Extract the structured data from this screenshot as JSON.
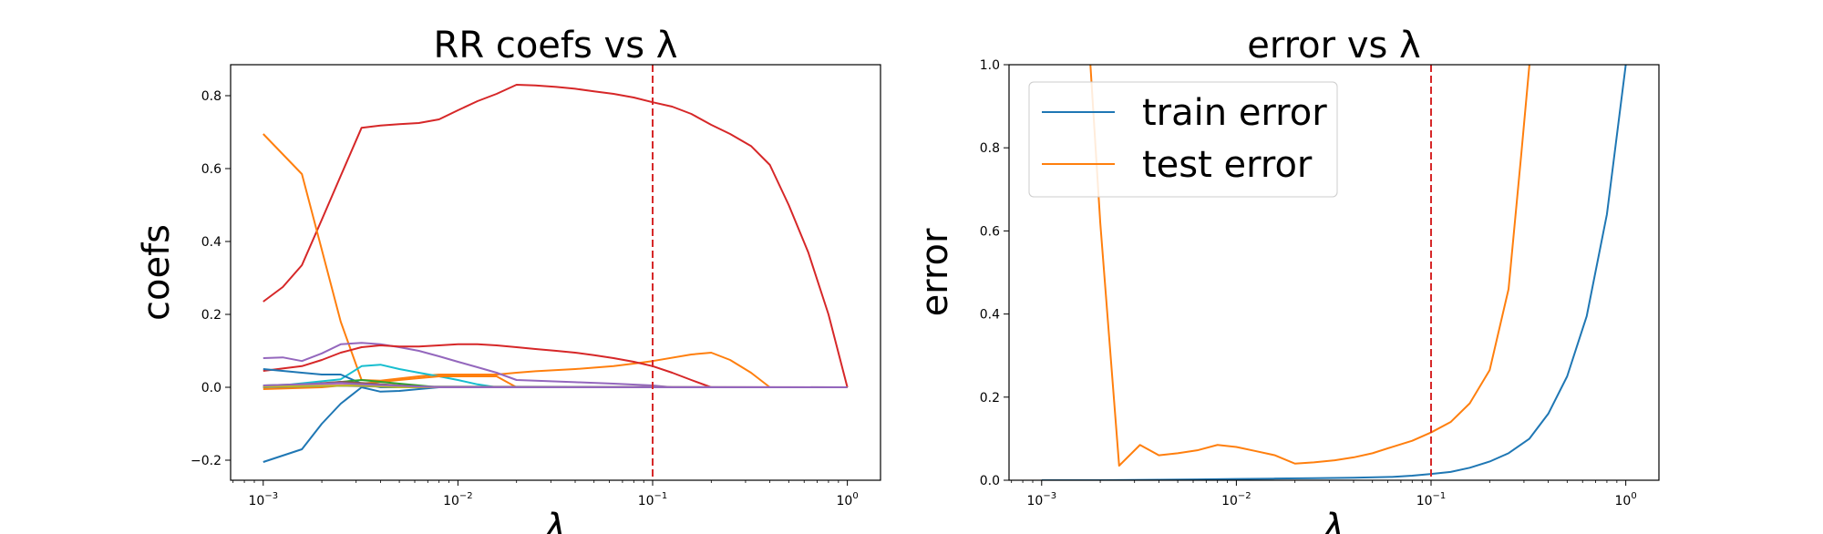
{
  "chart_data": [
    {
      "type": "line",
      "title": "RR coefs vs λ",
      "xlabel": "λ",
      "ylabel": "coefs",
      "xscale": "log",
      "xlim": [
        0.00068,
        1.48
      ],
      "ylim": [
        -0.255,
        0.885
      ],
      "xticks": [
        0.001,
        0.01,
        0.1,
        1
      ],
      "xtick_labels": [
        "10−3",
        "10−2",
        "10−1",
        "100"
      ],
      "yticks": [
        -0.2,
        0.0,
        0.2,
        0.4,
        0.6,
        0.8
      ],
      "ytick_labels": [
        "−0.2",
        "0.0",
        "0.2",
        "0.4",
        "0.6",
        "0.8"
      ],
      "vline": {
        "x": 0.1,
        "color": "#d62728",
        "style": "dashed"
      },
      "grid": false,
      "legend": null,
      "series": [
        {
          "color": "#d62728",
          "x": [
            0.001,
            0.00126,
            0.00158,
            0.002,
            0.0025,
            0.0032,
            0.004,
            0.005,
            0.0063,
            0.008,
            0.01,
            0.0126,
            0.0158,
            0.02,
            0.025,
            0.032,
            0.04,
            0.05,
            0.063,
            0.08,
            0.1,
            0.126,
            0.158,
            0.2,
            0.25,
            0.32,
            0.4,
            0.5,
            0.63,
            0.8,
            1.0
          ],
          "y": [
            0.235,
            0.275,
            0.335,
            0.46,
            0.58,
            0.712,
            0.718,
            0.722,
            0.725,
            0.735,
            0.76,
            0.785,
            0.805,
            0.83,
            0.828,
            0.824,
            0.819,
            0.812,
            0.805,
            0.795,
            0.782,
            0.77,
            0.75,
            0.72,
            0.695,
            0.662,
            0.61,
            0.5,
            0.37,
            0.2,
            0.0
          ]
        },
        {
          "color": "#ff7f0e",
          "x": [
            0.001,
            0.00158,
            0.0025,
            0.0032,
            0.004,
            0.005,
            0.0063,
            0.008,
            0.01,
            0.0158,
            0.02,
            0.025,
            0.04,
            0.063,
            0.08,
            0.1,
            0.158,
            0.2,
            0.25,
            0.32,
            0.4,
            1.0
          ],
          "y": [
            0.695,
            0.585,
            0.18,
            0.02,
            0.018,
            0.024,
            0.03,
            0.035,
            0.035,
            0.035,
            0.04,
            0.044,
            0.05,
            0.058,
            0.065,
            0.072,
            0.09,
            0.095,
            0.075,
            0.04,
            0.0,
            0.0
          ]
        },
        {
          "color": "#1f77b4",
          "x": [
            0.001,
            0.00158,
            0.002,
            0.0025,
            0.0032,
            0.004,
            0.005,
            0.0063,
            0.008,
            0.01,
            1.0
          ],
          "y": [
            -0.205,
            -0.17,
            -0.1,
            -0.045,
            0.0,
            -0.012,
            -0.01,
            -0.005,
            0.0,
            0.0,
            0.0
          ]
        },
        {
          "color": "#9467bd",
          "x": [
            0.001,
            0.00126,
            0.00158,
            0.002,
            0.0025,
            0.0032,
            0.004,
            0.005,
            0.0063,
            0.008,
            0.01,
            0.0126,
            0.0158,
            0.02,
            0.025,
            0.04,
            0.063,
            0.1,
            0.126,
            1.0
          ],
          "y": [
            0.08,
            0.082,
            0.072,
            0.093,
            0.118,
            0.122,
            0.118,
            0.11,
            0.1,
            0.085,
            0.07,
            0.055,
            0.04,
            0.02,
            0.018,
            0.014,
            0.01,
            0.005,
            0.0,
            0.0
          ]
        },
        {
          "color": "#d62728",
          "x": [
            0.001,
            0.00158,
            0.002,
            0.0025,
            0.0032,
            0.004,
            0.005,
            0.0063,
            0.008,
            0.01,
            0.0126,
            0.0158,
            0.02,
            0.025,
            0.032,
            0.04,
            0.05,
            0.063,
            0.08,
            0.1,
            0.126,
            0.158,
            0.2,
            1.0
          ],
          "y": [
            0.045,
            0.058,
            0.075,
            0.095,
            0.11,
            0.115,
            0.112,
            0.112,
            0.115,
            0.118,
            0.118,
            0.115,
            0.11,
            0.105,
            0.1,
            0.095,
            0.088,
            0.08,
            0.07,
            0.058,
            0.04,
            0.02,
            0.0,
            0.0
          ]
        },
        {
          "color": "#17becf",
          "x": [
            0.001,
            0.0025,
            0.0032,
            0.004,
            0.005,
            0.0063,
            0.008,
            0.01,
            0.0126,
            0.0158,
            1.0
          ],
          "y": [
            0.0,
            0.022,
            0.058,
            0.062,
            0.05,
            0.04,
            0.03,
            0.02,
            0.008,
            0.0,
            0.0
          ]
        },
        {
          "color": "#1f77b4",
          "x": [
            0.001,
            0.00158,
            0.002,
            0.0025,
            0.0032,
            0.004,
            1.0
          ],
          "y": [
            0.05,
            0.04,
            0.035,
            0.035,
            0.01,
            0.0,
            0.0
          ]
        },
        {
          "color": "#ff7f0e",
          "x": [
            0.001,
            0.002,
            0.0032,
            0.004,
            0.005,
            0.0063,
            0.008,
            0.01,
            0.0158,
            0.02,
            1.0
          ],
          "y": [
            -0.005,
            0.0,
            0.01,
            0.015,
            0.02,
            0.025,
            0.03,
            0.03,
            0.03,
            0.0,
            0.0
          ]
        },
        {
          "color": "#2ca02c",
          "x": [
            0.001,
            0.002,
            0.0032,
            0.005,
            0.008,
            1.0
          ],
          "y": [
            0.005,
            0.01,
            0.02,
            0.01,
            0.0,
            0.0
          ]
        },
        {
          "color": "#8c564b",
          "x": [
            0.001,
            0.0025,
            0.0032,
            0.005,
            0.008,
            1.0
          ],
          "y": [
            0.0,
            0.015,
            0.012,
            0.005,
            0.0,
            0.0
          ]
        },
        {
          "color": "#e377c2",
          "x": [
            0.001,
            0.002,
            0.0032,
            0.005,
            1.0
          ],
          "y": [
            0.003,
            0.006,
            0.008,
            0.002,
            0.0
          ]
        },
        {
          "color": "#7f7f7f",
          "x": [
            0.001,
            0.0025,
            0.004,
            1.0
          ],
          "y": [
            0.0,
            0.004,
            0.002,
            0.0
          ]
        },
        {
          "color": "#bcbd22",
          "x": [
            0.001,
            0.0032,
            0.005,
            1.0
          ],
          "y": [
            0.002,
            0.005,
            0.0,
            0.0
          ]
        },
        {
          "color": "#9467bd",
          "x": [
            0.001,
            0.0025,
            0.0032,
            0.005,
            0.008,
            1.0
          ],
          "y": [
            0.005,
            0.012,
            0.008,
            0.004,
            0.0,
            0.0
          ]
        }
      ]
    },
    {
      "type": "line",
      "title": "error vs λ",
      "xlabel": "λ",
      "ylabel": "error",
      "xscale": "log",
      "xlim": [
        0.00068,
        1.48
      ],
      "ylim": [
        0.0,
        1.0
      ],
      "xticks": [
        0.001,
        0.01,
        0.1,
        1
      ],
      "xtick_labels": [
        "10−3",
        "10−2",
        "10−1",
        "100"
      ],
      "yticks": [
        0.0,
        0.2,
        0.4,
        0.6,
        0.8,
        1.0
      ],
      "ytick_labels": [
        "0.0",
        "0.2",
        "0.4",
        "0.6",
        "0.8",
        "1.0"
      ],
      "vline": {
        "x": 0.1,
        "color": "#d62728",
        "style": "dashed"
      },
      "grid": false,
      "legend": "top-left",
      "series": [
        {
          "name": "train error",
          "color": "#1f77b4",
          "x": [
            0.001,
            0.002,
            0.004,
            0.0063,
            0.01,
            0.0158,
            0.025,
            0.04,
            0.063,
            0.08,
            0.1,
            0.126,
            0.158,
            0.2,
            0.25,
            0.32,
            0.4,
            0.5,
            0.63,
            0.8,
            1.0
          ],
          "y": [
            0.0,
            0.0,
            0.001,
            0.002,
            0.003,
            0.004,
            0.005,
            0.006,
            0.008,
            0.011,
            0.015,
            0.02,
            0.03,
            0.045,
            0.065,
            0.1,
            0.16,
            0.25,
            0.395,
            0.64,
            1.0
          ]
        },
        {
          "name": "test error",
          "color": "#ff7f0e",
          "x": [
            0.00178,
            0.002,
            0.0025,
            0.0032,
            0.004,
            0.005,
            0.0063,
            0.008,
            0.01,
            0.0126,
            0.0158,
            0.02,
            0.025,
            0.032,
            0.04,
            0.05,
            0.063,
            0.08,
            0.1,
            0.126,
            0.158,
            0.2,
            0.25,
            0.29,
            0.32
          ],
          "y": [
            1.0,
            0.62,
            0.035,
            0.085,
            0.06,
            0.065,
            0.072,
            0.085,
            0.08,
            0.07,
            0.06,
            0.04,
            0.043,
            0.048,
            0.055,
            0.065,
            0.08,
            0.095,
            0.115,
            0.14,
            0.185,
            0.265,
            0.46,
            0.78,
            1.0
          ]
        }
      ]
    }
  ]
}
